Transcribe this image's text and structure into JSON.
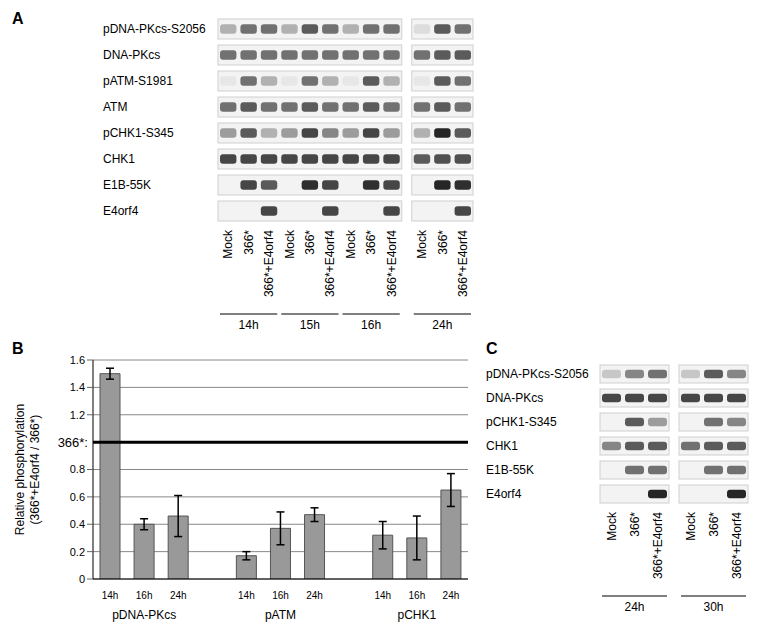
{
  "blots_A": {
    "label": "A",
    "lanes": [
      "Mock",
      "366*",
      "366*+E4orf4"
    ],
    "time_points": [
      "14h",
      "15h",
      "16h",
      "24h"
    ],
    "rows": [
      {
        "label": "pDNA-PKcs-S2056",
        "bands": [
          0.3,
          0.6,
          0.6,
          0.3,
          0.7,
          0.6,
          0.3,
          0.6,
          0.6,
          0.1,
          0.7,
          0.6
        ]
      },
      {
        "label": "DNA-PKcs",
        "bands": [
          0.6,
          0.6,
          0.6,
          0.6,
          0.6,
          0.6,
          0.6,
          0.6,
          0.6,
          0.6,
          0.7,
          0.7
        ]
      },
      {
        "label": "pATM-S1981",
        "bands": [
          0.05,
          0.6,
          0.3,
          0.05,
          0.6,
          0.3,
          0.05,
          0.7,
          0.3,
          0.05,
          0.7,
          0.6
        ]
      },
      {
        "label": "ATM",
        "bands": [
          0.6,
          0.7,
          0.6,
          0.6,
          0.7,
          0.6,
          0.6,
          0.7,
          0.6,
          0.6,
          0.7,
          0.6
        ]
      },
      {
        "label": "pCHK1-S345",
        "bands": [
          0.4,
          0.7,
          0.3,
          0.4,
          0.8,
          0.5,
          0.4,
          0.8,
          0.4,
          0.3,
          0.95,
          0.7
        ]
      },
      {
        "label": "CHK1",
        "bands": [
          0.8,
          0.8,
          0.8,
          0.8,
          0.8,
          0.8,
          0.8,
          0.8,
          0.8,
          0.7,
          0.75,
          0.75
        ]
      },
      {
        "label": "E1B-55K",
        "bands": [
          0,
          0.8,
          0.7,
          0,
          0.9,
          0.8,
          0,
          0.9,
          0.8,
          0,
          0.95,
          0.9
        ]
      },
      {
        "label": "E4orf4",
        "bands": [
          0,
          0,
          0.8,
          0,
          0,
          0.8,
          0,
          0,
          0.8,
          0,
          0,
          0.8
        ]
      }
    ]
  },
  "chart_data": {
    "type": "bar",
    "panel_label": "B",
    "y_label": [
      "Relative phosphorylation",
      "(366*+E4orf4 / 366*)"
    ],
    "categories": [
      "14h",
      "16h",
      "24h",
      null,
      "14h",
      "16h",
      "24h",
      null,
      "14h",
      "16h",
      "24h"
    ],
    "group_labels": [
      "pDNA-PKcs",
      "pATM",
      "pCHK1"
    ],
    "values": [
      1.5,
      0.4,
      0.46,
      null,
      0.17,
      0.37,
      0.47,
      null,
      0.32,
      0.3,
      0.65
    ],
    "errors": [
      0.04,
      0.04,
      0.15,
      null,
      0.03,
      0.12,
      0.05,
      null,
      0.1,
      0.16,
      0.12
    ],
    "color": "#999999",
    "ylim": [
      0,
      1.6
    ],
    "yticks": [
      0,
      0.2,
      0.4,
      0.6,
      0.8,
      1.2,
      1.4,
      1.6
    ],
    "grid": true,
    "reference_line": {
      "value": 1,
      "label": "366*:"
    }
  },
  "blots_C": {
    "label": "C",
    "lanes": [
      "Mock",
      "366*",
      "366*+E4orf4"
    ],
    "time_points": [
      "24h",
      "30h"
    ],
    "rows": [
      {
        "label": "pDNA-PKcs-S2056",
        "bands": [
          0.2,
          0.5,
          0.6,
          0.2,
          0.7,
          0.5
        ]
      },
      {
        "label": "DNA-PKcs",
        "bands": [
          0.8,
          0.8,
          0.8,
          0.8,
          0.8,
          0.8
        ]
      },
      {
        "label": "pCHK1-S345",
        "bands": [
          0,
          0.7,
          0.4,
          0,
          0.6,
          0.5
        ]
      },
      {
        "label": "CHK1",
        "bands": [
          0.5,
          0.7,
          0.7,
          0.6,
          0.7,
          0.7
        ]
      },
      {
        "label": "E1B-55K",
        "bands": [
          0,
          0.6,
          0.6,
          0,
          0.6,
          0.6
        ]
      },
      {
        "label": "E4orf4",
        "bands": [
          0,
          0,
          0.95,
          0,
          0,
          0.95
        ]
      }
    ]
  }
}
